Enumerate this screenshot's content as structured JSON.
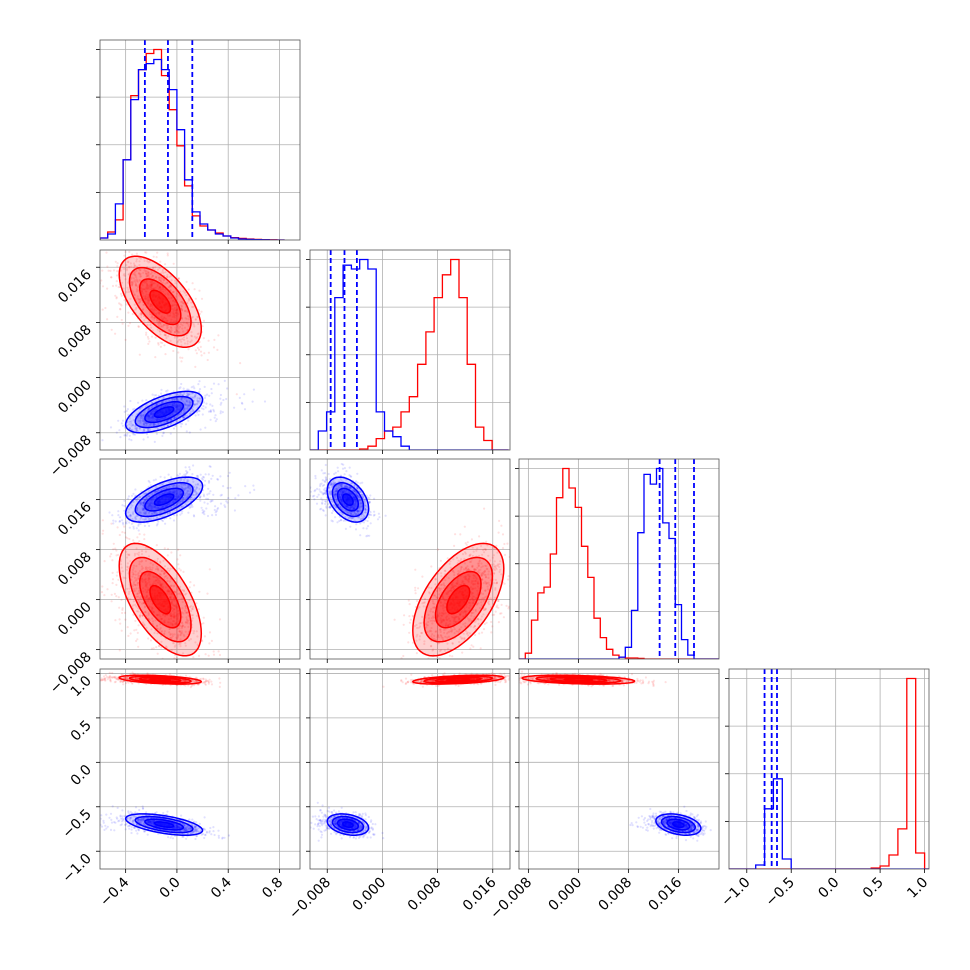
{
  "chart_data": {
    "type": "corner",
    "title": "",
    "series": [
      {
        "name": "",
        "color": "#ff0000",
        "mean": [
          -0.13,
          0.011,
          0.0,
          0.93
        ],
        "sd": [
          0.16,
          0.0033,
          0.0045,
          0.025
        ],
        "corr": [
          [
            1,
            -0.6,
            -0.6,
            -0.45
          ],
          [
            -0.6,
            1,
            0.55,
            0.45
          ],
          [
            -0.6,
            0.55,
            1,
            -0.35
          ],
          [
            -0.45,
            0.45,
            -0.35,
            1
          ]
        ],
        "hist_edges": [
          [
            -0.6,
            -0.54,
            -0.48,
            -0.42,
            -0.36,
            -0.3,
            -0.24,
            -0.18,
            -0.12,
            -0.06,
            0.0,
            0.06,
            0.12,
            0.18,
            0.24,
            0.3,
            0.36,
            0.42,
            0.48,
            0.54,
            0.6,
            0.66,
            0.72,
            0.78,
            0.84
          ],
          [
            -0.0105,
            -0.0093,
            -0.0081,
            -0.0069,
            -0.0057,
            -0.0045,
            -0.0033,
            -0.0021,
            -0.0009,
            0.0003,
            0.0015,
            0.0027,
            0.0039,
            0.0051,
            0.0063,
            0.0075,
            0.0087,
            0.0099,
            0.0111,
            0.0123,
            0.0135,
            0.0147,
            0.0159,
            0.0171,
            0.0183
          ],
          [
            -0.0095,
            -0.0085,
            -0.0075,
            -0.0065,
            -0.0055,
            -0.0045,
            -0.0035,
            -0.0025,
            -0.0015,
            -0.0005,
            0.0005,
            0.0015,
            0.0025,
            0.0035,
            0.0045,
            0.0055,
            0.0065,
            0.0075,
            0.0085,
            0.0095,
            0.0105,
            0.0115,
            0.0125,
            0.0135,
            0.0145,
            0.0155,
            0.0165,
            0.0175,
            0.0185,
            0.0195,
            0.0205,
            0.0215,
            0.0225
          ],
          [
            -1.3,
            -1.2,
            -1.1,
            -1.0,
            -0.9,
            -0.8,
            -0.7,
            -0.6,
            -0.5,
            -0.4,
            -0.3,
            -0.2,
            -0.1,
            0.0,
            0.1,
            0.2,
            0.3,
            0.4,
            0.5,
            0.6,
            0.7,
            0.8,
            0.9,
            1.0,
            1.1
          ]
        ],
        "hist_counts": [
          [
            0.01,
            0.04,
            0.1,
            0.4,
            0.72,
            0.85,
            0.93,
            0.95,
            0.82,
            0.65,
            0.47,
            0.27,
            0.12,
            0.07,
            0.05,
            0.035,
            0.02,
            0.012,
            0.008,
            0.005,
            0.003,
            0.002,
            0.001,
            0.0
          ],
          [
            0.0,
            0.0,
            0.0,
            0.0,
            0.0,
            0.0,
            0.005,
            0.02,
            0.06,
            0.1,
            0.12,
            0.2,
            0.28,
            0.45,
            0.62,
            0.8,
            0.92,
            1.0,
            0.8,
            0.45,
            0.12,
            0.05,
            0.0,
            0.0
          ],
          [
            0.0,
            0.03,
            0.2,
            0.34,
            0.37,
            0.54,
            0.83,
            0.98,
            0.88,
            0.78,
            0.58,
            0.42,
            0.21,
            0.11,
            0.05,
            0.02,
            0.01,
            0.005,
            0.005,
            0.003,
            0.0,
            0.0,
            0.0,
            0.0,
            0.0,
            0.0,
            0.0,
            0.0,
            0.0,
            0.0,
            0.0,
            0.0
          ],
          [
            0.0,
            0.0,
            0.0,
            0.0,
            0.0,
            0.0,
            0.0,
            0.0,
            0.0,
            0.0,
            0.0,
            0.0,
            0.0,
            0.0,
            0.0,
            0.0,
            0.0,
            0.005,
            0.015,
            0.07,
            0.2,
            0.95,
            0.08,
            0.0
          ]
        ]
      },
      {
        "name": "",
        "color": "#0000ff",
        "mean": [
          -0.1,
          -0.005,
          0.016,
          -0.7
        ],
        "sd": [
          0.15,
          0.0015,
          0.0018,
          0.06
        ],
        "corr": [
          [
            1,
            0.6,
            0.6,
            -0.55
          ],
          [
            0.6,
            1,
            -0.4,
            -0.3
          ],
          [
            0.6,
            -0.4,
            1,
            -0.35
          ],
          [
            -0.55,
            -0.3,
            -0.35,
            1
          ]
        ],
        "hist_edges": [
          [
            -0.6,
            -0.54,
            -0.48,
            -0.42,
            -0.36,
            -0.3,
            -0.24,
            -0.18,
            -0.12,
            -0.06,
            0.0,
            0.06,
            0.12,
            0.18,
            0.24,
            0.3,
            0.36,
            0.42,
            0.48,
            0.54,
            0.6,
            0.66,
            0.72,
            0.78,
            0.84
          ],
          [
            -0.0105,
            -0.0093,
            -0.0081,
            -0.0069,
            -0.0057,
            -0.0045,
            -0.0033,
            -0.0021,
            -0.0009,
            0.0003,
            0.0015,
            0.0027,
            0.0039,
            0.0051,
            0.0063,
            0.0075,
            0.0087,
            0.0099,
            0.0111,
            0.0123,
            0.0135,
            0.0147,
            0.0159,
            0.0171,
            0.0183
          ],
          [
            -0.0095,
            -0.0085,
            -0.0075,
            -0.0065,
            -0.0055,
            -0.0045,
            -0.0035,
            -0.0025,
            -0.0015,
            -0.0005,
            0.0005,
            0.0015,
            0.0025,
            0.0035,
            0.0045,
            0.0055,
            0.0065,
            0.0075,
            0.0085,
            0.0095,
            0.0105,
            0.0115,
            0.0125,
            0.0135,
            0.0145,
            0.0155,
            0.0165,
            0.0175,
            0.0185,
            0.0195,
            0.0205,
            0.0215,
            0.0225
          ],
          [
            -1.3,
            -1.2,
            -1.1,
            -1.0,
            -0.9,
            -0.8,
            -0.7,
            -0.6,
            -0.5,
            -0.4,
            -0.3,
            -0.2,
            -0.1,
            0.0,
            0.1,
            0.2,
            0.3,
            0.4,
            0.5,
            0.6,
            0.7,
            0.8,
            0.9,
            1.0,
            1.1
          ]
        ],
        "hist_counts": [
          [
            0.01,
            0.03,
            0.18,
            0.4,
            0.7,
            0.85,
            0.88,
            0.9,
            0.85,
            0.75,
            0.55,
            0.3,
            0.14,
            0.08,
            0.05,
            0.03,
            0.02,
            0.01,
            0.005,
            0.003,
            0.002,
            0.001,
            0.0,
            0.0
          ],
          [
            0.0,
            0.1,
            0.2,
            0.8,
            0.97,
            0.95,
            1.0,
            0.95,
            0.2,
            0.1,
            0.07,
            0.02,
            0.0,
            0.0,
            0.0,
            0.0,
            0.0,
            0.0,
            0.0,
            0.0,
            0.0,
            0.0,
            0.0,
            0.0
          ],
          [
            0.0,
            0.0,
            0.0,
            0.0,
            0.0,
            0.0,
            0.0,
            0.0,
            0.0,
            0.0,
            0.0,
            0.0,
            0.0,
            0.0,
            0.0,
            0.0,
            0.01,
            0.06,
            0.25,
            0.65,
            0.95,
            0.9,
            0.98,
            0.7,
            0.62,
            0.28,
            0.1,
            0.02,
            0.0,
            0.0,
            0.0,
            0.0
          ],
          [
            0.0,
            0.0,
            0.0,
            0.0,
            0.02,
            0.3,
            0.45,
            0.05,
            0.0,
            0.0,
            0.0,
            0.0,
            0.0,
            0.0,
            0.0,
            0.0,
            0.0,
            0.0,
            0.0,
            0.0,
            0.0,
            0.0,
            0.0,
            0.0
          ]
        ],
        "quantile_lines": [
          [
            -0.25,
            -0.07,
            0.12
          ],
          [
            -0.0075,
            -0.0055,
            -0.0037
          ],
          [
            0.013,
            0.0155,
            0.0185
          ],
          [
            -0.8,
            -0.72,
            -0.66
          ]
        ]
      }
    ],
    "params": [
      {
        "range": [
          -0.6,
          0.96
        ],
        "ticks": [
          -0.4,
          0.0,
          0.4,
          0.8
        ],
        "tick_labels": [
          "−0.4",
          "0.0",
          "0.4",
          "0.8"
        ]
      },
      {
        "range": [
          -0.0105,
          0.0185
        ],
        "ticks": [
          -0.008,
          0.0,
          0.008,
          0.016
        ],
        "tick_labels": [
          "−0.008",
          "0.000",
          "0.008",
          "0.016"
        ]
      },
      {
        "range": [
          -0.0095,
          0.0225
        ],
        "ticks": [
          -0.008,
          0.0,
          0.008,
          0.016
        ],
        "tick_labels": [
          "−0.008",
          "0.000",
          "0.008",
          "0.016"
        ]
      },
      {
        "range": [
          -1.2,
          1.05
        ],
        "ticks": [
          -1.0,
          -0.5,
          0.0,
          0.5,
          1.0
        ],
        "tick_labels": [
          "−1.0",
          "−0.5",
          "0.0",
          "0.5",
          "1.0"
        ]
      }
    ],
    "grid": true,
    "legend": "none",
    "xlabel": "",
    "ylabel": ""
  }
}
